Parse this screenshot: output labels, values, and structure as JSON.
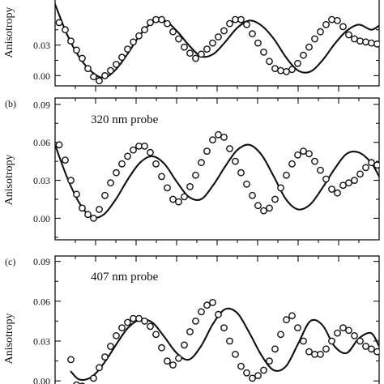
{
  "chart_data": [
    {
      "type": "scatter",
      "panel_label": "",
      "title": "",
      "ylabel": "Anisotropy",
      "ylim": [
        -0.01,
        0.09
      ],
      "yticks": [
        "0.00",
        "0.03"
      ],
      "xlim": [
        0,
        80
      ],
      "points": {
        "x": [
          1,
          2.5,
          3.9,
          5.3,
          6.7,
          8.1,
          9.5,
          10.9,
          12.3,
          13.7,
          15.1,
          16.5,
          17.9,
          19.3,
          20.7,
          22.1,
          23.5,
          24.9,
          26.3,
          27.7,
          29.1,
          30.5,
          31.9,
          33.3,
          34.7,
          36.1,
          37.5,
          38.9,
          40.3,
          41.7,
          43.1,
          44.5,
          45.9,
          47.3,
          48.7,
          50.1,
          51.5,
          52.9,
          54.3,
          55.7,
          57.1,
          58.5,
          59.9,
          61.3,
          62.7,
          64.1,
          65.5,
          66.9,
          68.3,
          69.7,
          71.1,
          72.5,
          73.9,
          75.3,
          76.7,
          78.1,
          79.5
        ],
        "y": [
          0.052,
          0.045,
          0.034,
          0.025,
          0.017,
          0.007,
          -0.001,
          -0.005,
          0.0,
          0.005,
          0.011,
          0.018,
          0.026,
          0.033,
          0.039,
          0.045,
          0.052,
          0.055,
          0.055,
          0.051,
          0.043,
          0.036,
          0.028,
          0.022,
          0.017,
          0.021,
          0.026,
          0.032,
          0.038,
          0.044,
          0.051,
          0.055,
          0.055,
          0.05,
          0.041,
          0.032,
          0.023,
          0.014,
          0.007,
          0.005,
          0.004,
          0.006,
          0.012,
          0.02,
          0.028,
          0.036,
          0.043,
          0.05,
          0.055,
          0.054,
          0.048,
          0.04,
          0.036,
          0.034,
          0.033,
          0.032,
          0.031
        ]
      },
      "fit": {
        "x": [
          0,
          3,
          6,
          9,
          12,
          15,
          18,
          21,
          24,
          27,
          30,
          33,
          36,
          39,
          42,
          45,
          48,
          51,
          54,
          57,
          60,
          63,
          66,
          69,
          72,
          75,
          78,
          80
        ],
        "y": [
          0.07,
          0.04,
          0.018,
          0.004,
          -0.002,
          0.006,
          0.022,
          0.04,
          0.052,
          0.054,
          0.044,
          0.03,
          0.019,
          0.021,
          0.033,
          0.047,
          0.054,
          0.049,
          0.036,
          0.018,
          0.005,
          0.004,
          0.015,
          0.031,
          0.044,
          0.05,
          0.045,
          0.049
        ]
      }
    },
    {
      "type": "scatter",
      "panel_label": "(b)",
      "title": "320 nm probe",
      "ylabel": "Anisotropy",
      "ylim": [
        -0.017,
        0.095
      ],
      "yticks": [
        "0.00",
        "0.03",
        "0.06",
        "0.09"
      ],
      "xlim": [
        0,
        80
      ],
      "points": {
        "x": [
          1,
          2.5,
          3.9,
          5.3,
          6.7,
          8.1,
          9.5,
          10.9,
          12.3,
          13.7,
          15.1,
          16.5,
          17.9,
          19.3,
          20.7,
          22.1,
          23.5,
          24.9,
          26.3,
          27.7,
          29.1,
          30.5,
          31.9,
          33.3,
          34.7,
          36.1,
          37.5,
          38.9,
          40.3,
          41.7,
          43.1,
          44.5,
          45.9,
          47.3,
          48.7,
          50.1,
          51.5,
          52.9,
          54.3,
          55.7,
          57.1,
          58.5,
          59.9,
          61.3,
          62.7,
          64.1,
          65.5,
          66.9,
          68.3,
          69.7,
          71.1,
          72.5,
          73.9,
          75.3,
          76.7,
          78.1,
          79.5
        ],
        "y": [
          0.058,
          0.046,
          0.03,
          0.019,
          0.008,
          0.003,
          0.0,
          0.007,
          0.018,
          0.028,
          0.036,
          0.043,
          0.049,
          0.054,
          0.057,
          0.057,
          0.052,
          0.043,
          0.033,
          0.024,
          0.015,
          0.013,
          0.017,
          0.025,
          0.034,
          0.044,
          0.053,
          0.062,
          0.066,
          0.064,
          0.055,
          0.045,
          0.036,
          0.027,
          0.018,
          0.01,
          0.006,
          0.008,
          0.015,
          0.024,
          0.034,
          0.043,
          0.05,
          0.053,
          0.051,
          0.045,
          0.038,
          0.031,
          0.023,
          0.02,
          0.026,
          0.028,
          0.03,
          0.035,
          0.04,
          0.044,
          0.042
        ]
      },
      "fit": {
        "x": [
          0,
          3,
          6,
          9,
          12,
          15,
          18,
          21,
          24,
          27,
          30,
          33,
          36,
          39,
          42,
          45,
          48,
          51,
          54,
          57,
          60,
          63,
          66,
          69,
          72,
          75,
          78,
          80
        ],
        "y": [
          0.058,
          0.032,
          0.012,
          0.001,
          0.003,
          0.015,
          0.031,
          0.044,
          0.049,
          0.043,
          0.029,
          0.017,
          0.015,
          0.026,
          0.041,
          0.054,
          0.058,
          0.05,
          0.033,
          0.015,
          0.007,
          0.011,
          0.024,
          0.039,
          0.051,
          0.052,
          0.044,
          0.033
        ]
      }
    },
    {
      "type": "scatter",
      "panel_label": "(c)",
      "title": "407 nm probe",
      "ylabel": "Anisotropy",
      "ylim": [
        -0.006,
        0.094
      ],
      "yticks": [
        "0.00",
        "0.03",
        "0.06",
        "0.09"
      ],
      "xlim": [
        0,
        80
      ],
      "points": {
        "x": [
          3.9,
          5.3,
          6.7,
          8.1,
          9.5,
          10.9,
          12.3,
          13.7,
          15.1,
          16.5,
          17.9,
          19.3,
          20.7,
          22.1,
          23.5,
          24.9,
          26.3,
          27.7,
          29.1,
          30.5,
          31.9,
          33.3,
          34.7,
          36.1,
          37.5,
          38.9,
          40.3,
          41.7,
          43.1,
          44.5,
          45.9,
          47.3,
          48.7,
          50.1,
          51.5,
          52.9,
          54.3,
          55.7,
          57.1,
          58.5,
          59.9,
          61.3,
          62.7,
          64.1,
          65.5,
          66.9,
          68.3,
          69.7,
          71.1,
          72.5,
          73.9,
          75.3,
          76.7,
          78.1,
          79.5
        ],
        "y": [
          0.016,
          -0.003,
          -0.004,
          -0.005,
          0.002,
          0.01,
          0.018,
          0.026,
          0.034,
          0.04,
          0.044,
          0.047,
          0.047,
          0.045,
          0.041,
          0.035,
          0.025,
          0.015,
          0.012,
          0.017,
          0.027,
          0.037,
          0.045,
          0.052,
          0.057,
          0.059,
          0.05,
          0.04,
          0.03,
          0.02,
          0.011,
          0.006,
          0.002,
          0.004,
          0.008,
          0.015,
          0.024,
          0.035,
          0.046,
          0.049,
          0.04,
          0.03,
          0.022,
          0.02,
          0.02,
          0.024,
          0.03,
          0.036,
          0.04,
          0.038,
          0.034,
          0.03,
          0.026,
          0.024,
          0.022
        ]
      },
      "fit": {
        "x": [
          3.9,
          6,
          9,
          12,
          15,
          18,
          21,
          24,
          27,
          30,
          33,
          36,
          39,
          42,
          45,
          48,
          51,
          54,
          57,
          60,
          63,
          66,
          69,
          72,
          75,
          78,
          80
        ],
        "y": [
          0.007,
          0.001,
          0.003,
          0.013,
          0.027,
          0.04,
          0.046,
          0.044,
          0.033,
          0.021,
          0.016,
          0.026,
          0.043,
          0.054,
          0.051,
          0.036,
          0.019,
          0.008,
          0.011,
          0.028,
          0.045,
          0.042,
          0.026,
          0.021,
          0.032,
          0.036,
          0.026
        ]
      }
    }
  ]
}
